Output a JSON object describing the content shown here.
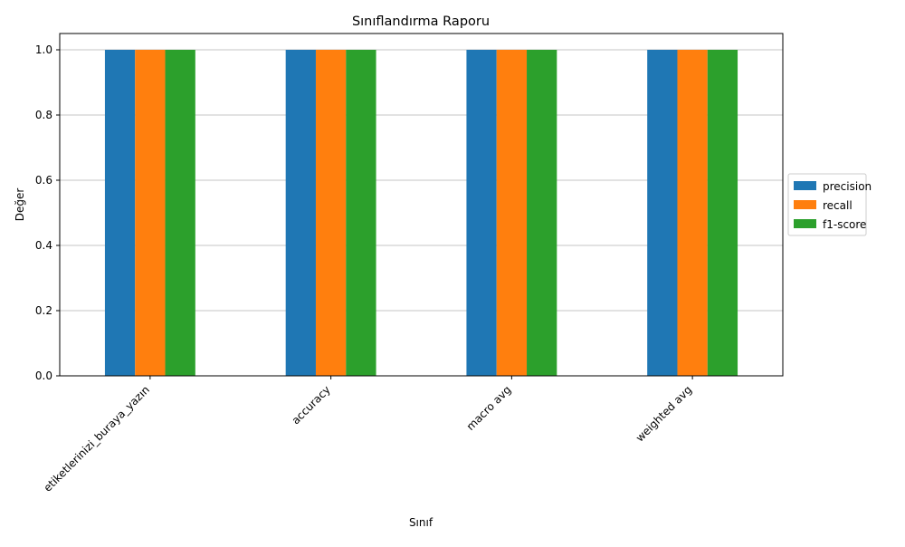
{
  "chart_data": {
    "type": "bar",
    "title": "Sınıflandırma Raporu",
    "xlabel": "Sınıf",
    "ylabel": "Değer",
    "categories": [
      "etiketlerinizi_buraya_yazın",
      "accuracy",
      "macro avg",
      "weighted avg"
    ],
    "series": [
      {
        "name": "precision",
        "color": "#1f77b4",
        "values": [
          1.0,
          1.0,
          1.0,
          1.0
        ]
      },
      {
        "name": "recall",
        "color": "#ff7f0e",
        "values": [
          1.0,
          1.0,
          1.0,
          1.0
        ]
      },
      {
        "name": "f1-score",
        "color": "#2ca02c",
        "values": [
          1.0,
          1.0,
          1.0,
          1.0
        ]
      }
    ],
    "ylim": [
      0,
      1.05
    ],
    "yticks": [
      "0.0",
      "0.2",
      "0.4",
      "0.6",
      "0.8",
      "1.0"
    ],
    "grid": "y",
    "legend_position": "right, outside plot"
  }
}
